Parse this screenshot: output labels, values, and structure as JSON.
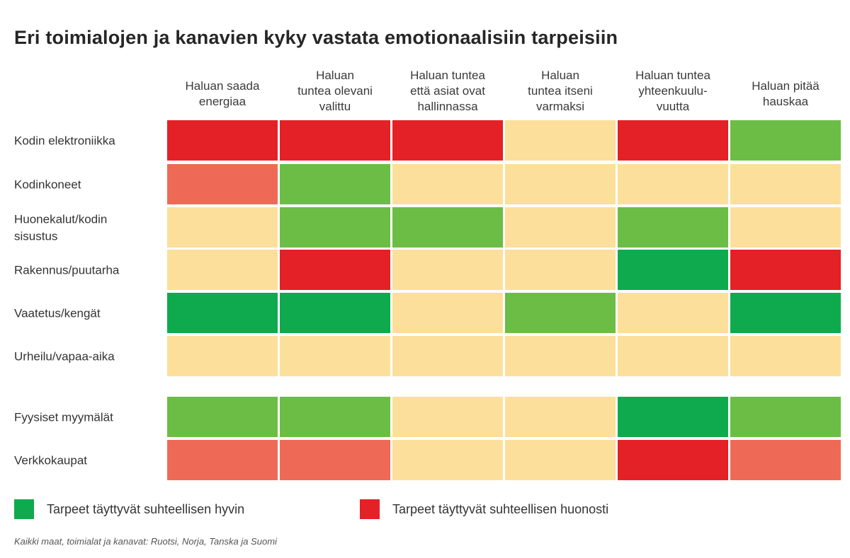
{
  "title": "Eri toimialojen ja kanavien kyky vastata emotionaalisiin tarpeisiin",
  "colors": {
    "good_strong": "#0faa4d",
    "good": "#6cbd45",
    "neutral": "#fcdf9b",
    "poor_light": "#ee6a57",
    "poor": "#e42127"
  },
  "chart_data": {
    "type": "heatmap",
    "columns": [
      [
        "Haluan saada",
        "energiaa"
      ],
      [
        "Haluan",
        "tuntea olevani",
        "valittu"
      ],
      [
        "Haluan tuntea",
        "että asiat ovat",
        "hallinnassa"
      ],
      [
        "Haluan",
        "tuntea itseni",
        "varmaksi"
      ],
      [
        "Haluan tuntea",
        "yhteenkuulu-",
        "vuutta"
      ],
      [
        "Haluan pitää",
        "hauskaa"
      ]
    ],
    "rows": [
      {
        "label": [
          "Kodin elektroniikka"
        ],
        "cells": [
          "poor",
          "poor",
          "poor",
          "neutral",
          "poor",
          "good"
        ]
      },
      {
        "label": [
          "Kodinkoneet"
        ],
        "cells": [
          "poor_light",
          "good",
          "neutral",
          "neutral",
          "neutral",
          "neutral"
        ]
      },
      {
        "label": [
          "Huonekalut/kodin",
          "sisustus"
        ],
        "cells": [
          "neutral",
          "good",
          "good",
          "neutral",
          "good",
          "neutral"
        ]
      },
      {
        "label": [
          "Rakennus/puutarha"
        ],
        "cells": [
          "neutral",
          "poor",
          "neutral",
          "neutral",
          "good_strong",
          "poor"
        ]
      },
      {
        "label": [
          "Vaatetus/kengät"
        ],
        "cells": [
          "good_strong",
          "good_strong",
          "neutral",
          "good",
          "neutral",
          "good_strong"
        ]
      },
      {
        "label": [
          "Urheilu/vapaa-aika"
        ],
        "cells": [
          "neutral",
          "neutral",
          "neutral",
          "neutral",
          "neutral",
          "neutral"
        ]
      },
      {
        "label": [
          "Fyysiset myymälät"
        ],
        "cells": [
          "good",
          "good",
          "neutral",
          "neutral",
          "good_strong",
          "good"
        ]
      },
      {
        "label": [
          "Verkkokaupat"
        ],
        "cells": [
          "poor_light",
          "poor_light",
          "neutral",
          "neutral",
          "poor",
          "poor_light"
        ]
      }
    ]
  },
  "legend": {
    "good_label": "Tarpeet täyttyvät suhteellisen hyvin",
    "poor_label": "Tarpeet täyttyvät suhteellisen huonosti"
  },
  "footnote": "Kaikki maat, toimialat ja kanavat: Ruotsi, Norja, Tanska ja Suomi"
}
